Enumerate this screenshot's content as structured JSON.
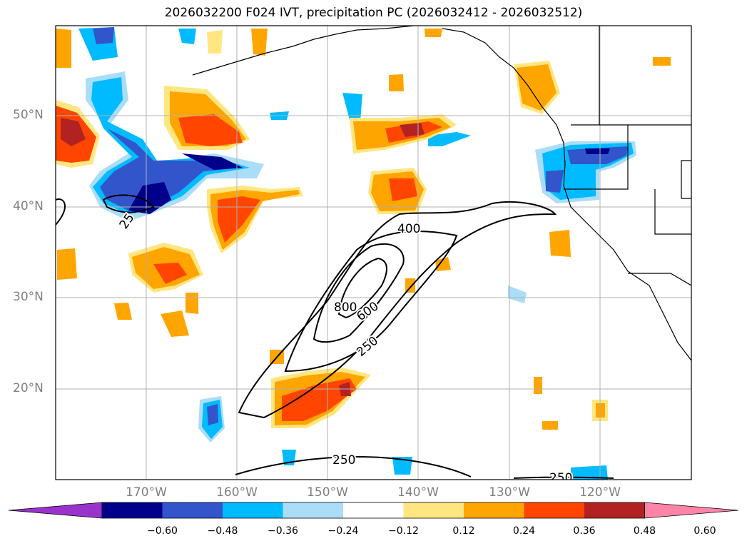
{
  "title": "2026032200 F024 IVT, precipitation PC (2026032412 - 2026032512)",
  "lat_labels": [
    "50°N",
    "40°N",
    "30°N",
    "20°N"
  ],
  "lon_labels": [
    "170°W",
    "160°W",
    "150°W",
    "140°W",
    "130°W",
    "120°W"
  ],
  "contour_labels": [
    "400",
    "800",
    "600",
    "250",
    "25",
    "250",
    "250"
  ],
  "colorbar": {
    "ticks": [
      "−0.60",
      "−0.48",
      "−0.36",
      "−0.24",
      "−0.12",
      "0.12",
      "0.24",
      "0.36",
      "0.48",
      "0.60"
    ],
    "colors": [
      "#9933cc",
      "#00008b",
      "#3355cc",
      "#00bbff",
      "#aaddf7",
      "#ffffff",
      "#ffe680",
      "#ffa500",
      "#ff4500",
      "#b22222",
      "#ff85a8"
    ]
  },
  "colors": {
    "neg_strong": "#00008b",
    "neg_mid": "#3355cc",
    "neg": "#00bbff",
    "neg_light": "#aaddf7",
    "pos_light": "#ffe680",
    "pos": "#ffa500",
    "pos_mid": "#ff4500",
    "pos_strong": "#b22222"
  }
}
